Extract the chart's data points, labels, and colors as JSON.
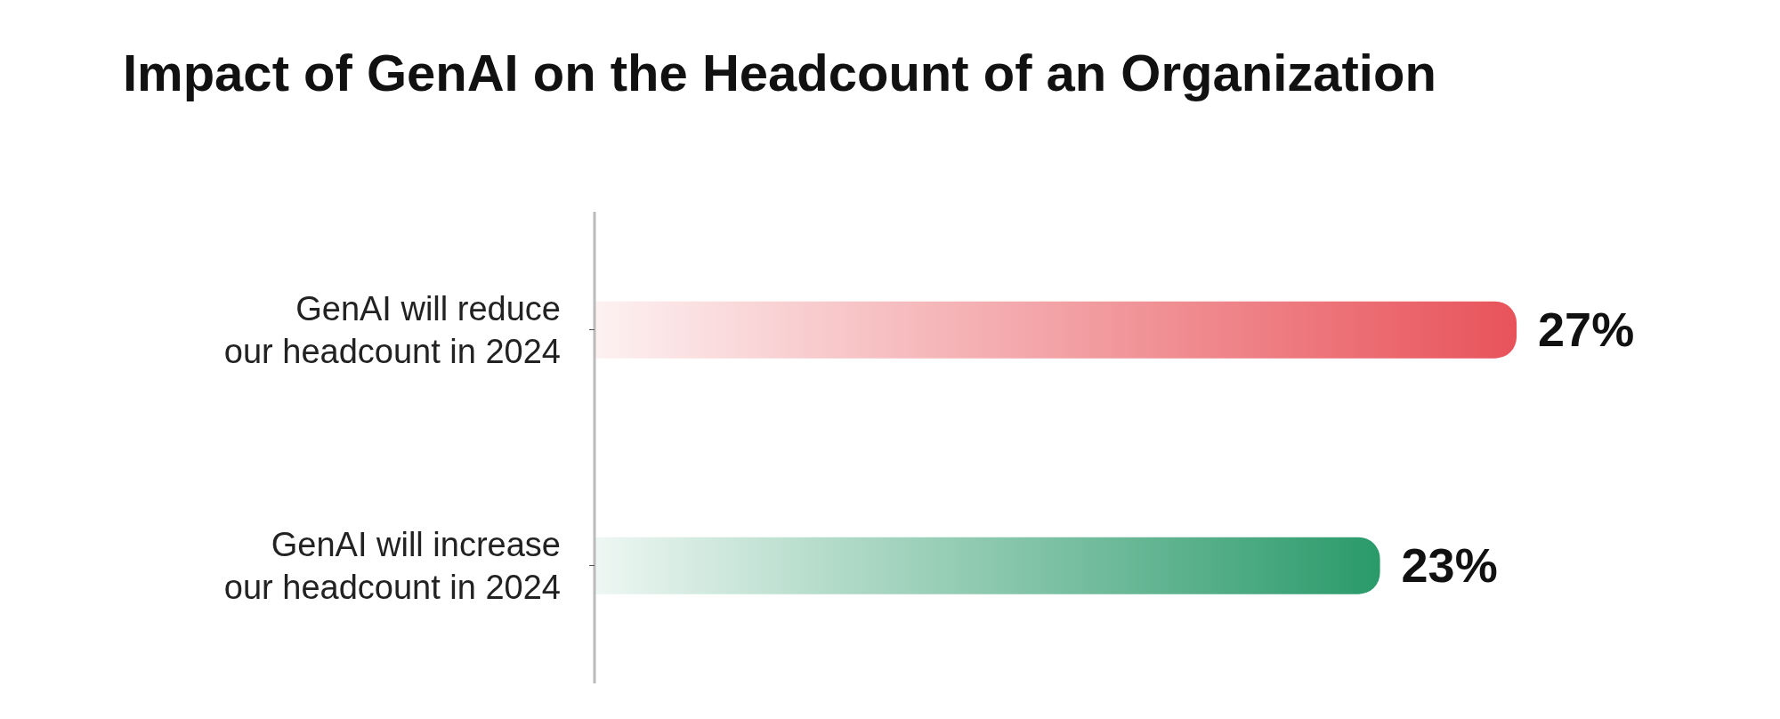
{
  "chart_data": {
    "type": "bar",
    "orientation": "horizontal",
    "title": "Impact of GenAI on the Headcount of an Organization",
    "categories": [
      "GenAI will reduce our headcount in 2024",
      "GenAI will increase our headcount in 2024"
    ],
    "values": [
      27,
      23
    ],
    "colors": [
      "#e8535a",
      "#2a9a6a"
    ],
    "value_labels": [
      "27%",
      "23%"
    ],
    "tick_labels": "y",
    "legend": false
  }
}
